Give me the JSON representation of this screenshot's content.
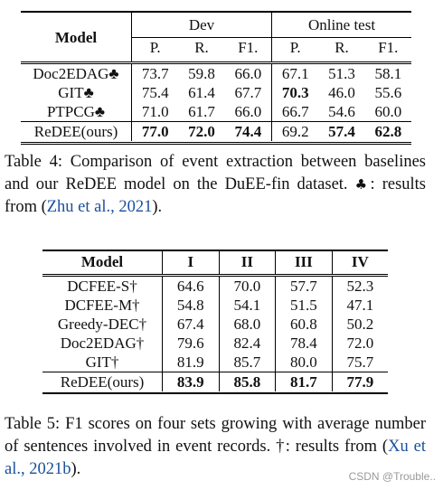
{
  "table4": {
    "header_model": "Model",
    "group_dev": "Dev",
    "group_online": "Online test",
    "subheaders": [
      "P.",
      "R.",
      "F1.",
      "P.",
      "R.",
      "F1."
    ],
    "rows": [
      {
        "model": "Doc2EDAG♣",
        "values": [
          "73.7",
          "59.8",
          "66.0",
          "67.1",
          "51.3",
          "58.1"
        ]
      },
      {
        "model": "GIT♣",
        "values": [
          "75.4",
          "61.4",
          "67.7",
          "70.3",
          "46.0",
          "55.6"
        ]
      },
      {
        "model": "PTPCG♣",
        "values": [
          "71.0",
          "61.7",
          "66.0",
          "66.7",
          "54.6",
          "60.0"
        ]
      }
    ],
    "ours": {
      "model": "ReDEE(ours)",
      "values": [
        "77.0",
        "72.0",
        "74.4",
        "69.2",
        "57.4",
        "62.8"
      ]
    },
    "caption_label": "Table 4:",
    "caption_text": "Comparison of event extraction between baselines and our ReDEE model on the DuEE-fin dataset.",
    "caption_note_symbol": "♣",
    "caption_note": ": results from (",
    "caption_cite": "Zhu et al., 2021",
    "caption_end": ")."
  },
  "table5": {
    "headers": [
      "Model",
      "I",
      "II",
      "III",
      "IV"
    ],
    "rows": [
      {
        "model": "DCFEE-S†",
        "values": [
          "64.6",
          "70.0",
          "57.7",
          "52.3"
        ]
      },
      {
        "model": "DCFEE-M†",
        "values": [
          "54.8",
          "54.1",
          "51.5",
          "47.1"
        ]
      },
      {
        "model": "Greedy-DEC†",
        "values": [
          "67.4",
          "68.0",
          "60.8",
          "50.2"
        ]
      },
      {
        "model": "Doc2EDAG†",
        "values": [
          "79.6",
          "82.4",
          "78.4",
          "72.0"
        ]
      },
      {
        "model": "GIT†",
        "values": [
          "81.9",
          "85.7",
          "80.0",
          "75.7"
        ]
      }
    ],
    "ours": {
      "model": "ReDEE(ours)",
      "values": [
        "83.9",
        "85.8",
        "81.7",
        "77.9"
      ]
    },
    "caption_label": "Table 5:",
    "caption_text": "F1 scores on four sets growing with average number of sentences involved in event records.",
    "caption_note": "†: results from (",
    "caption_cite": "Xu et al., 2021b",
    "caption_end": ")."
  },
  "watermark": "CSDN @Trouble.."
}
